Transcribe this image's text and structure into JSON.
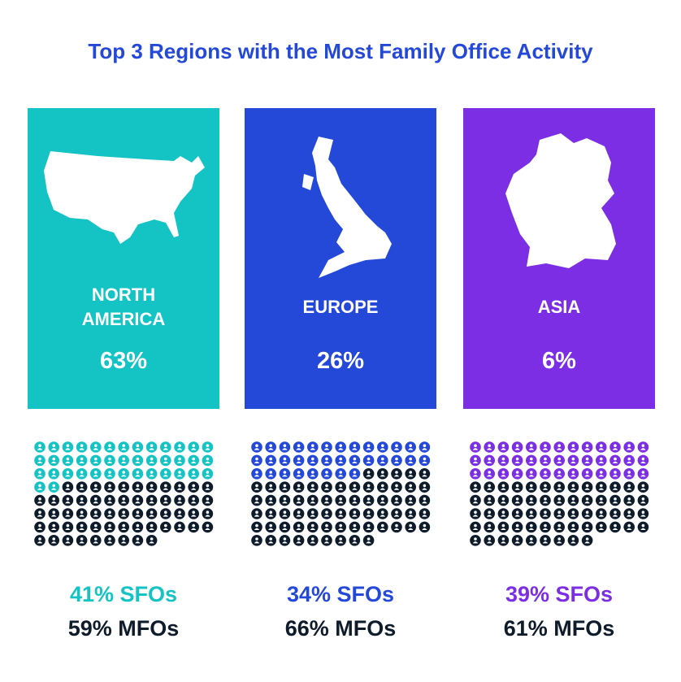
{
  "title": "Top 3 Regions with the Most Family Office Activity",
  "regions": [
    {
      "name": "NORTH AMERICA",
      "share": "63%",
      "color": "#14c3c3",
      "sfo": {
        "value": 41,
        "label": "41% SFOs"
      },
      "mfo": {
        "value": 59,
        "label": "59% MFOs"
      }
    },
    {
      "name": "EUROPE",
      "share": "26%",
      "color": "#2448d8",
      "sfo": {
        "value": 34,
        "label": "34% SFOs"
      },
      "mfo": {
        "value": 66,
        "label": "66% MFOs"
      }
    },
    {
      "name": "ASIA",
      "share": "6%",
      "color": "#7b2ee3",
      "sfo": {
        "value": 39,
        "label": "39% SFOs"
      },
      "mfo": {
        "value": 61,
        "label": "61% MFOs"
      }
    }
  ]
}
